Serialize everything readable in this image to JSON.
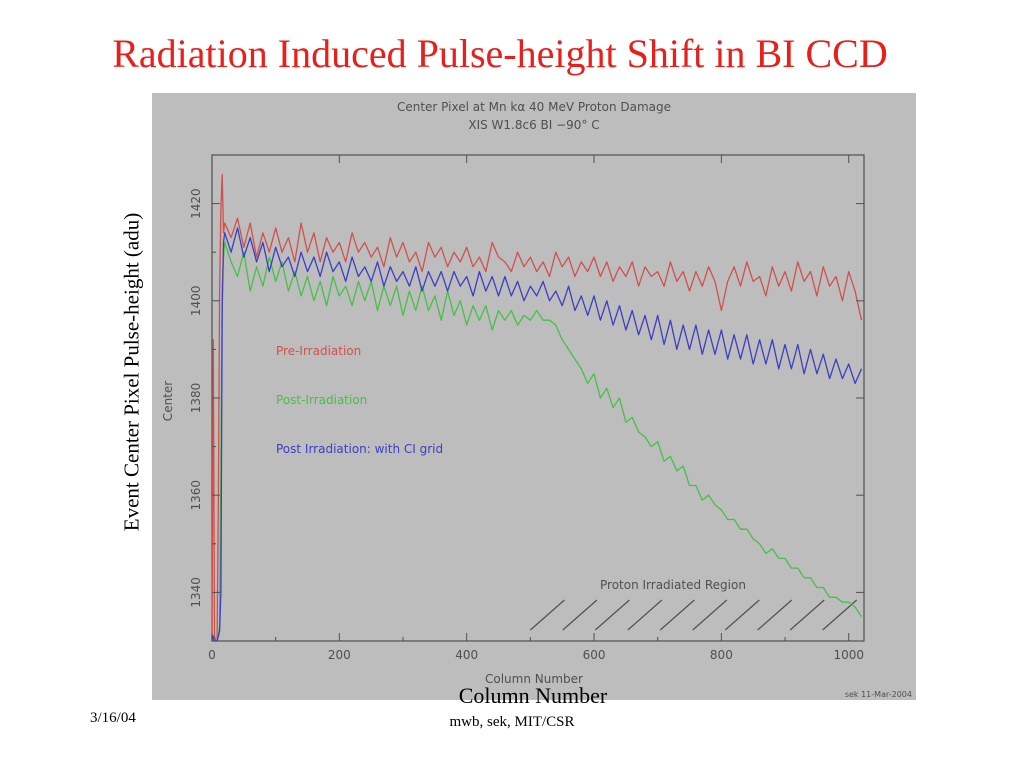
{
  "slide": {
    "title": "Radiation Induced Pulse-height Shift in BI CCD",
    "outer_ylabel": "Event Center Pixel Pulse-height (adu)",
    "outer_xlabel": "Column Number",
    "footer_date": "3/16/04",
    "footer_credit": "mwb, sek, MIT/CSR"
  },
  "colors": {
    "pre": "#d0504e",
    "post": "#46c046",
    "grid": "#3c3ec4",
    "title": "#e8201c",
    "panel": "#bdbdbd",
    "ink": "#505050"
  },
  "chart_data": {
    "type": "line",
    "title": "Center Pixel at Mn kα 40 MeV Proton Damage",
    "subtitle": "XIS W1.8c6 BI −90° C",
    "xlabel": "Column Number",
    "ylabel": "Center",
    "xlim": [
      0,
      1024
    ],
    "ylim": [
      1330,
      1430
    ],
    "xticks": [
      "0",
      "200",
      "400",
      "600",
      "800",
      "1000"
    ],
    "yticks": [
      "1340",
      "1360",
      "1380",
      "1400",
      "1420"
    ],
    "annotation": "Proton Irradiated Region",
    "irradiated_region": [
      500,
      1010
    ],
    "credit": "sek 11-Mar-2004",
    "legend_position": "center-left",
    "series": [
      {
        "name": "Pre-Irradiation",
        "x": [
          0,
          2,
          4,
          6,
          8,
          10,
          12,
          14,
          16,
          18,
          20,
          30,
          40,
          50,
          60,
          70,
          80,
          90,
          100,
          110,
          120,
          130,
          140,
          150,
          160,
          170,
          180,
          190,
          200,
          210,
          220,
          230,
          240,
          250,
          260,
          270,
          280,
          290,
          300,
          310,
          320,
          330,
          340,
          350,
          360,
          370,
          380,
          390,
          400,
          410,
          420,
          430,
          440,
          450,
          460,
          470,
          480,
          490,
          500,
          510,
          520,
          530,
          540,
          550,
          560,
          570,
          580,
          590,
          600,
          610,
          620,
          630,
          640,
          650,
          660,
          670,
          680,
          690,
          700,
          710,
          720,
          730,
          740,
          750,
          760,
          770,
          780,
          790,
          800,
          810,
          820,
          830,
          840,
          850,
          860,
          870,
          880,
          890,
          900,
          910,
          920,
          930,
          940,
          950,
          960,
          970,
          980,
          990,
          1000,
          1010,
          1020
        ],
        "values": [
          1330,
          1392,
          1331,
          1330,
          1330,
          1360,
          1402,
          1419,
          1426,
          1414,
          1416,
          1413,
          1417,
          1411,
          1416,
          1409,
          1414,
          1410,
          1415,
          1410,
          1413,
          1408,
          1416,
          1410,
          1414,
          1408,
          1413,
          1410,
          1412,
          1408,
          1414,
          1410,
          1412,
          1409,
          1411,
          1407,
          1413,
          1409,
          1412,
          1408,
          1410,
          1406,
          1412,
          1409,
          1411,
          1407,
          1410,
          1408,
          1411,
          1407,
          1409,
          1406,
          1412,
          1409,
          1408,
          1406,
          1410,
          1407,
          1409,
          1406,
          1408,
          1405,
          1410,
          1407,
          1409,
          1405,
          1408,
          1406,
          1409,
          1405,
          1408,
          1404,
          1407,
          1405,
          1408,
          1403,
          1407,
          1405,
          1406,
          1403,
          1408,
          1404,
          1406,
          1402,
          1406,
          1403,
          1407,
          1404,
          1398,
          1404,
          1407,
          1403,
          1408,
          1404,
          1405,
          1401,
          1407,
          1403,
          1406,
          1402,
          1408,
          1404,
          1406,
          1401,
          1407,
          1403,
          1405,
          1400,
          1406,
          1402,
          1396
        ]
      },
      {
        "name": "Post-Irradiation",
        "x": [
          0,
          2,
          4,
          6,
          8,
          10,
          12,
          14,
          16,
          18,
          20,
          30,
          40,
          50,
          60,
          70,
          80,
          90,
          100,
          110,
          120,
          130,
          140,
          150,
          160,
          170,
          180,
          190,
          200,
          210,
          220,
          230,
          240,
          250,
          260,
          270,
          280,
          290,
          300,
          310,
          320,
          330,
          340,
          350,
          360,
          370,
          380,
          390,
          400,
          410,
          420,
          430,
          440,
          450,
          460,
          470,
          480,
          490,
          500,
          510,
          520,
          530,
          540,
          550,
          560,
          570,
          580,
          590,
          600,
          610,
          620,
          630,
          640,
          650,
          660,
          670,
          680,
          690,
          700,
          710,
          720,
          730,
          740,
          750,
          760,
          770,
          780,
          790,
          800,
          810,
          820,
          830,
          840,
          850,
          860,
          870,
          880,
          890,
          900,
          910,
          920,
          930,
          940,
          950,
          960,
          970,
          980,
          990,
          1000,
          1010,
          1020
        ],
        "values": [
          1330,
          1331,
          1330,
          1330,
          1330,
          1331,
          1333,
          1365,
          1403,
          1409,
          1412,
          1408,
          1405,
          1410,
          1402,
          1407,
          1403,
          1409,
          1404,
          1408,
          1402,
          1406,
          1401,
          1405,
          1400,
          1404,
          1399,
          1405,
          1401,
          1403,
          1399,
          1404,
          1400,
          1404,
          1398,
          1403,
          1399,
          1403,
          1397,
          1402,
          1398,
          1403,
          1398,
          1401,
          1396,
          1402,
          1397,
          1400,
          1395,
          1399,
          1396,
          1399,
          1394,
          1398,
          1396,
          1398,
          1395,
          1397,
          1396,
          1398,
          1396,
          1396,
          1395,
          1392,
          1390,
          1388,
          1386,
          1383,
          1385,
          1380,
          1382,
          1378,
          1380,
          1375,
          1376,
          1373,
          1372,
          1370,
          1371,
          1367,
          1368,
          1365,
          1366,
          1362,
          1362,
          1359,
          1360,
          1358,
          1357,
          1355,
          1355,
          1353,
          1353,
          1351,
          1350,
          1348,
          1349,
          1347,
          1347,
          1345,
          1345,
          1343,
          1343,
          1341,
          1341,
          1339,
          1339,
          1338,
          1338,
          1337,
          1335
        ]
      },
      {
        "name": "Post Irradiation: with CI grid",
        "x": [
          0,
          2,
          4,
          6,
          8,
          10,
          12,
          14,
          16,
          18,
          20,
          30,
          40,
          50,
          60,
          70,
          80,
          90,
          100,
          110,
          120,
          130,
          140,
          150,
          160,
          170,
          180,
          190,
          200,
          210,
          220,
          230,
          240,
          250,
          260,
          270,
          280,
          290,
          300,
          310,
          320,
          330,
          340,
          350,
          360,
          370,
          380,
          390,
          400,
          410,
          420,
          430,
          440,
          450,
          460,
          470,
          480,
          490,
          500,
          510,
          520,
          530,
          540,
          550,
          560,
          570,
          580,
          590,
          600,
          610,
          620,
          630,
          640,
          650,
          660,
          670,
          680,
          690,
          700,
          710,
          720,
          730,
          740,
          750,
          760,
          770,
          780,
          790,
          800,
          810,
          820,
          830,
          840,
          850,
          860,
          870,
          880,
          890,
          900,
          910,
          920,
          930,
          940,
          950,
          960,
          970,
          980,
          990,
          1000,
          1010,
          1020
        ],
        "values": [
          1330,
          1331,
          1330,
          1330,
          1330,
          1331,
          1332,
          1340,
          1398,
          1412,
          1414,
          1410,
          1415,
          1409,
          1413,
          1408,
          1412,
          1406,
          1411,
          1407,
          1409,
          1405,
          1410,
          1406,
          1409,
          1405,
          1410,
          1406,
          1408,
          1404,
          1409,
          1405,
          1407,
          1404,
          1408,
          1403,
          1407,
          1404,
          1406,
          1403,
          1407,
          1402,
          1406,
          1403,
          1406,
          1402,
          1406,
          1403,
          1405,
          1401,
          1406,
          1402,
          1405,
          1401,
          1405,
          1401,
          1404,
          1400,
          1403,
          1401,
          1404,
          1400,
          1402,
          1399,
          1403,
          1398,
          1401,
          1397,
          1401,
          1396,
          1400,
          1395,
          1399,
          1394,
          1398,
          1393,
          1397,
          1392,
          1397,
          1391,
          1396,
          1390,
          1395,
          1390,
          1395,
          1389,
          1394,
          1389,
          1394,
          1388,
          1393,
          1388,
          1393,
          1387,
          1392,
          1387,
          1392,
          1386,
          1391,
          1386,
          1391,
          1385,
          1390,
          1385,
          1389,
          1384,
          1388,
          1384,
          1387,
          1383,
          1386
        ]
      }
    ]
  }
}
